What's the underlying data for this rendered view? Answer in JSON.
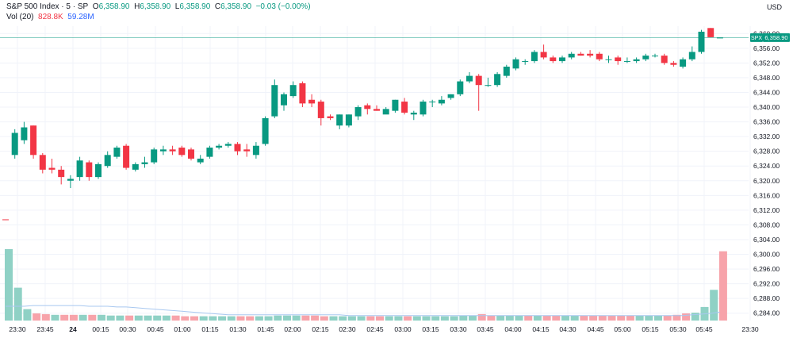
{
  "legend": {
    "symbol": "S&P 500 Index · 5 · SP",
    "o_label": "O",
    "o_val": "6,358.90",
    "h_label": "H",
    "h_val": "6,358.90",
    "l_label": "L",
    "l_val": "6,358.90",
    "c_label": "C",
    "c_val": "6,358.90",
    "change": "−0.03 (−0.00%)",
    "vol_label": "Vol (20)",
    "vol_val": "828.8K",
    "vol_ma": "59.28M"
  },
  "currency": "USD",
  "price_tag": {
    "symbol": "SPX",
    "value": "6,358.90"
  },
  "colors": {
    "up": "#089981",
    "down": "#F23645",
    "vol_up": "#8fd1c5",
    "vol_down": "#f7a3aa",
    "ma": "#a8c8f0",
    "grid": "#f0f3fa",
    "price_line": "#089981"
  },
  "chart_data": {
    "type": "candlestick",
    "ylim": [
      6282,
      6362
    ],
    "y_ticks": [
      "6,360.00",
      "6,356.00",
      "6,352.00",
      "6,348.00",
      "6,344.00",
      "6,340.00",
      "6,336.00",
      "6,332.00",
      "6,328.00",
      "6,324.00",
      "6,320.00",
      "6,316.00",
      "6,312.00",
      "6,308.00",
      "6,304.00",
      "6,300.00",
      "6,296.00",
      "6,292.00",
      "6,288.00",
      "6,284.00"
    ],
    "x_tick_labels": [
      "23:30",
      "23:45",
      "24",
      "00:15",
      "00:30",
      "00:45",
      "01:00",
      "01:15",
      "01:30",
      "01:45",
      "02:00",
      "02:15",
      "02:30",
      "02:45",
      "03:00",
      "03:15",
      "03:30",
      "03:45",
      "04:00",
      "04:15",
      "04:30",
      "04:45",
      "05:00",
      "05:15",
      "05:30",
      "05:45",
      "23:30"
    ],
    "x_tick_bold": [
      false,
      false,
      true,
      false,
      false,
      false,
      false,
      false,
      false,
      false,
      false,
      false,
      false,
      false,
      false,
      false,
      false,
      false,
      false,
      false,
      false,
      false,
      false,
      false,
      false,
      false,
      false
    ],
    "candles": [
      {
        "o": 6309.5,
        "h": 6309.5,
        "l": 6309.3,
        "c": 6309.3
      },
      {
        "o": 6327.0,
        "h": 6334.0,
        "l": 6326.0,
        "c": 6333.0
      },
      {
        "o": 6331.0,
        "h": 6336.0,
        "l": 6330.0,
        "c": 6334.5
      },
      {
        "o": 6335.0,
        "h": 6335.0,
        "l": 6326.0,
        "c": 6327.0
      },
      {
        "o": 6327.0,
        "h": 6327.5,
        "l": 6322.0,
        "c": 6323.0
      },
      {
        "o": 6323.5,
        "h": 6326.0,
        "l": 6322.0,
        "c": 6323.0
      },
      {
        "o": 6323.0,
        "h": 6324.0,
        "l": 6319.0,
        "c": 6321.0
      },
      {
        "o": 6320.0,
        "h": 6321.5,
        "l": 6318.0,
        "c": 6320.5
      },
      {
        "o": 6321.0,
        "h": 6326.5,
        "l": 6320.0,
        "c": 6325.5
      },
      {
        "o": 6325.0,
        "h": 6325.5,
        "l": 6320.0,
        "c": 6321.0
      },
      {
        "o": 6321.0,
        "h": 6325.0,
        "l": 6320.5,
        "c": 6324.5
      },
      {
        "o": 6324.0,
        "h": 6328.0,
        "l": 6323.5,
        "c": 6327.0
      },
      {
        "o": 6326.5,
        "h": 6329.5,
        "l": 6326.0,
        "c": 6329.0
      },
      {
        "o": 6329.5,
        "h": 6330.0,
        "l": 6323.0,
        "c": 6323.5
      },
      {
        "o": 6323.0,
        "h": 6325.0,
        "l": 6322.5,
        "c": 6324.5
      },
      {
        "o": 6324.5,
        "h": 6326.5,
        "l": 6323.5,
        "c": 6325.0
      },
      {
        "o": 6325.0,
        "h": 6329.0,
        "l": 6324.5,
        "c": 6328.5
      },
      {
        "o": 6328.0,
        "h": 6329.5,
        "l": 6327.0,
        "c": 6328.5
      },
      {
        "o": 6328.5,
        "h": 6329.5,
        "l": 6327.0,
        "c": 6328.0
      },
      {
        "o": 6329.0,
        "h": 6329.5,
        "l": 6326.5,
        "c": 6327.0
      },
      {
        "o": 6328.5,
        "h": 6329.0,
        "l": 6325.5,
        "c": 6326.0
      },
      {
        "o": 6325.0,
        "h": 6327.0,
        "l": 6324.5,
        "c": 6326.0
      },
      {
        "o": 6326.5,
        "h": 6329.5,
        "l": 6326.0,
        "c": 6329.0
      },
      {
        "o": 6329.0,
        "h": 6330.0,
        "l": 6328.5,
        "c": 6329.5
      },
      {
        "o": 6329.5,
        "h": 6330.5,
        "l": 6329.0,
        "c": 6330.0
      },
      {
        "o": 6330.0,
        "h": 6330.5,
        "l": 6327.0,
        "c": 6328.0
      },
      {
        "o": 6328.5,
        "h": 6330.0,
        "l": 6326.5,
        "c": 6328.0
      },
      {
        "o": 6327.0,
        "h": 6330.5,
        "l": 6326.0,
        "c": 6329.5
      },
      {
        "o": 6330.0,
        "h": 6337.5,
        "l": 6329.5,
        "c": 6337.0
      },
      {
        "o": 6337.5,
        "h": 6347.5,
        "l": 6337.0,
        "c": 6346.0
      },
      {
        "o": 6340.5,
        "h": 6344.0,
        "l": 6339.0,
        "c": 6343.5
      },
      {
        "o": 6343.0,
        "h": 6347.0,
        "l": 6342.5,
        "c": 6346.0
      },
      {
        "o": 6346.5,
        "h": 6347.0,
        "l": 6340.0,
        "c": 6341.0
      },
      {
        "o": 6342.0,
        "h": 6343.5,
        "l": 6340.0,
        "c": 6341.0
      },
      {
        "o": 6341.5,
        "h": 6342.0,
        "l": 6335.0,
        "c": 6337.0
      },
      {
        "o": 6337.5,
        "h": 6338.0,
        "l": 6336.5,
        "c": 6337.0
      },
      {
        "o": 6335.0,
        "h": 6338.0,
        "l": 6334.0,
        "c": 6338.0
      },
      {
        "o": 6335.0,
        "h": 6338.0,
        "l": 6334.5,
        "c": 6338.0
      },
      {
        "o": 6337.5,
        "h": 6340.5,
        "l": 6336.5,
        "c": 6340.0
      },
      {
        "o": 6340.5,
        "h": 6341.0,
        "l": 6338.0,
        "c": 6339.5
      },
      {
        "o": 6339.5,
        "h": 6340.5,
        "l": 6339.0,
        "c": 6339.0
      },
      {
        "o": 6338.0,
        "h": 6340.0,
        "l": 6338.5,
        "c": 6339.5
      },
      {
        "o": 6339.0,
        "h": 6342.0,
        "l": 6338.5,
        "c": 6342.0
      },
      {
        "o": 6341.5,
        "h": 6342.5,
        "l": 6338.0,
        "c": 6338.5
      },
      {
        "o": 6338.0,
        "h": 6339.0,
        "l": 6336.5,
        "c": 6338.5
      },
      {
        "o": 6338.0,
        "h": 6342.0,
        "l": 6337.5,
        "c": 6341.5
      },
      {
        "o": 6341.5,
        "h": 6342.0,
        "l": 6340.0,
        "c": 6341.5
      },
      {
        "o": 6341.0,
        "h": 6343.0,
        "l": 6340.5,
        "c": 6342.0
      },
      {
        "o": 6342.5,
        "h": 6343.5,
        "l": 6342.0,
        "c": 6343.5
      },
      {
        "o": 6343.5,
        "h": 6347.5,
        "l": 6343.0,
        "c": 6347.0
      },
      {
        "o": 6347.0,
        "h": 6349.5,
        "l": 6346.5,
        "c": 6348.5
      },
      {
        "o": 6348.5,
        "h": 6349.0,
        "l": 6339.0,
        "c": 6346.0
      },
      {
        "o": 6346.0,
        "h": 6348.0,
        "l": 6345.5,
        "c": 6346.0
      },
      {
        "o": 6346.0,
        "h": 6349.5,
        "l": 6345.5,
        "c": 6349.0
      },
      {
        "o": 6348.5,
        "h": 6351.5,
        "l": 6348.0,
        "c": 6351.0
      },
      {
        "o": 6350.5,
        "h": 6353.5,
        "l": 6350.0,
        "c": 6353.0
      },
      {
        "o": 6352.5,
        "h": 6353.0,
        "l": 6351.5,
        "c": 6352.5
      },
      {
        "o": 6352.5,
        "h": 6355.5,
        "l": 6352.0,
        "c": 6355.0
      },
      {
        "o": 6355.0,
        "h": 6357.0,
        "l": 6353.0,
        "c": 6353.5
      },
      {
        "o": 6353.5,
        "h": 6354.0,
        "l": 6352.0,
        "c": 6352.5
      },
      {
        "o": 6352.5,
        "h": 6354.0,
        "l": 6352.0,
        "c": 6353.5
      },
      {
        "o": 6353.5,
        "h": 6355.0,
        "l": 6353.0,
        "c": 6354.5
      },
      {
        "o": 6354.5,
        "h": 6355.0,
        "l": 6354.0,
        "c": 6354.0
      },
      {
        "o": 6354.5,
        "h": 6355.5,
        "l": 6353.5,
        "c": 6354.0
      },
      {
        "o": 6354.5,
        "h": 6355.0,
        "l": 6352.5,
        "c": 6353.0
      },
      {
        "o": 6353.0,
        "h": 6354.0,
        "l": 6352.0,
        "c": 6353.0
      },
      {
        "o": 6353.5,
        "h": 6354.0,
        "l": 6351.5,
        "c": 6352.5
      },
      {
        "o": 6352.5,
        "h": 6353.5,
        "l": 6352.0,
        "c": 6352.5
      },
      {
        "o": 6352.5,
        "h": 6353.5,
        "l": 6352.0,
        "c": 6353.0
      },
      {
        "o": 6353.0,
        "h": 6354.5,
        "l": 6352.5,
        "c": 6354.0
      },
      {
        "o": 6354.0,
        "h": 6354.5,
        "l": 6353.5,
        "c": 6354.0
      },
      {
        "o": 6354.0,
        "h": 6354.5,
        "l": 6351.5,
        "c": 6352.0
      },
      {
        "o": 6352.0,
        "h": 6352.5,
        "l": 6351.0,
        "c": 6351.5
      },
      {
        "o": 6351.0,
        "h": 6353.5,
        "l": 6350.5,
        "c": 6353.0
      },
      {
        "o": 6353.0,
        "h": 6356.5,
        "l": 6352.5,
        "c": 6355.0
      },
      {
        "o": 6355.0,
        "h": 6361.0,
        "l": 6354.5,
        "c": 6360.5
      },
      {
        "o": 6361.5,
        "h": 6361.5,
        "l": 6359.0,
        "c": 6359.0
      },
      {
        "o": 6358.9,
        "h": 6358.9,
        "l": 6358.9,
        "c": 6358.9
      }
    ],
    "volume_bars": [
      {
        "v": 1.0,
        "up": true
      },
      {
        "v": 0.46,
        "up": true
      },
      {
        "v": 0.16,
        "up": true
      },
      {
        "v": 0.1,
        "up": false
      },
      {
        "v": 0.09,
        "up": false
      },
      {
        "v": 0.08,
        "up": true
      },
      {
        "v": 0.08,
        "up": false
      },
      {
        "v": 0.08,
        "up": false
      },
      {
        "v": 0.08,
        "up": true
      },
      {
        "v": 0.08,
        "up": false
      },
      {
        "v": 0.08,
        "up": true
      },
      {
        "v": 0.07,
        "up": true
      },
      {
        "v": 0.07,
        "up": true
      },
      {
        "v": 0.07,
        "up": false
      },
      {
        "v": 0.07,
        "up": true
      },
      {
        "v": 0.07,
        "up": true
      },
      {
        "v": 0.07,
        "up": true
      },
      {
        "v": 0.07,
        "up": true
      },
      {
        "v": 0.07,
        "up": false
      },
      {
        "v": 0.06,
        "up": false
      },
      {
        "v": 0.06,
        "up": false
      },
      {
        "v": 0.06,
        "up": true
      },
      {
        "v": 0.06,
        "up": true
      },
      {
        "v": 0.06,
        "up": true
      },
      {
        "v": 0.06,
        "up": true
      },
      {
        "v": 0.06,
        "up": false
      },
      {
        "v": 0.06,
        "up": false
      },
      {
        "v": 0.06,
        "up": true
      },
      {
        "v": 0.06,
        "up": true
      },
      {
        "v": 0.07,
        "up": true
      },
      {
        "v": 0.07,
        "up": true
      },
      {
        "v": 0.07,
        "up": true
      },
      {
        "v": 0.07,
        "up": false
      },
      {
        "v": 0.07,
        "up": false
      },
      {
        "v": 0.06,
        "up": false
      },
      {
        "v": 0.06,
        "up": true
      },
      {
        "v": 0.06,
        "up": true
      },
      {
        "v": 0.06,
        "up": true
      },
      {
        "v": 0.06,
        "up": true
      },
      {
        "v": 0.06,
        "up": false
      },
      {
        "v": 0.06,
        "up": false
      },
      {
        "v": 0.06,
        "up": true
      },
      {
        "v": 0.06,
        "up": true
      },
      {
        "v": 0.06,
        "up": false
      },
      {
        "v": 0.06,
        "up": true
      },
      {
        "v": 0.06,
        "up": true
      },
      {
        "v": 0.06,
        "up": true
      },
      {
        "v": 0.06,
        "up": true
      },
      {
        "v": 0.06,
        "up": true
      },
      {
        "v": 0.07,
        "up": true
      },
      {
        "v": 0.07,
        "up": true
      },
      {
        "v": 0.09,
        "up": false
      },
      {
        "v": 0.07,
        "up": false
      },
      {
        "v": 0.07,
        "up": true
      },
      {
        "v": 0.07,
        "up": true
      },
      {
        "v": 0.07,
        "up": true
      },
      {
        "v": 0.07,
        "up": false
      },
      {
        "v": 0.07,
        "up": true
      },
      {
        "v": 0.07,
        "up": false
      },
      {
        "v": 0.07,
        "up": false
      },
      {
        "v": 0.07,
        "up": true
      },
      {
        "v": 0.07,
        "up": true
      },
      {
        "v": 0.07,
        "up": false
      },
      {
        "v": 0.07,
        "up": false
      },
      {
        "v": 0.07,
        "up": false
      },
      {
        "v": 0.07,
        "up": false
      },
      {
        "v": 0.07,
        "up": false
      },
      {
        "v": 0.07,
        "up": false
      },
      {
        "v": 0.07,
        "up": true
      },
      {
        "v": 0.07,
        "up": true
      },
      {
        "v": 0.07,
        "up": true
      },
      {
        "v": 0.07,
        "up": false
      },
      {
        "v": 0.08,
        "up": false
      },
      {
        "v": 0.1,
        "up": false
      },
      {
        "v": 0.11,
        "up": true
      },
      {
        "v": 0.19,
        "up": true
      },
      {
        "v": 0.43,
        "up": true
      },
      {
        "v": 0.97,
        "up": false
      }
    ],
    "ma_line": [
      0.2,
      0.2,
      0.2,
      0.21,
      0.21,
      0.21,
      0.21,
      0.21,
      0.21,
      0.2,
      0.2,
      0.2,
      0.19,
      0.19,
      0.18,
      0.17,
      0.16,
      0.15,
      0.14,
      0.13,
      0.12,
      0.11,
      0.1,
      0.09,
      0.08,
      0.08,
      0.08,
      0.08,
      0.08,
      0.08,
      0.08,
      0.08,
      0.08,
      0.08,
      0.08,
      0.08,
      0.08,
      0.07,
      0.07,
      0.07,
      0.07,
      0.07,
      0.07,
      0.07,
      0.07,
      0.07,
      0.07,
      0.07,
      0.07,
      0.07,
      0.07,
      0.07,
      0.07,
      0.07,
      0.07,
      0.07,
      0.07,
      0.07,
      0.07,
      0.07,
      0.07,
      0.07,
      0.07,
      0.07,
      0.07,
      0.07,
      0.07,
      0.07,
      0.07,
      0.07,
      0.07,
      0.07,
      0.07,
      0.07,
      0.08,
      0.09,
      0.1,
      0.12
    ]
  }
}
